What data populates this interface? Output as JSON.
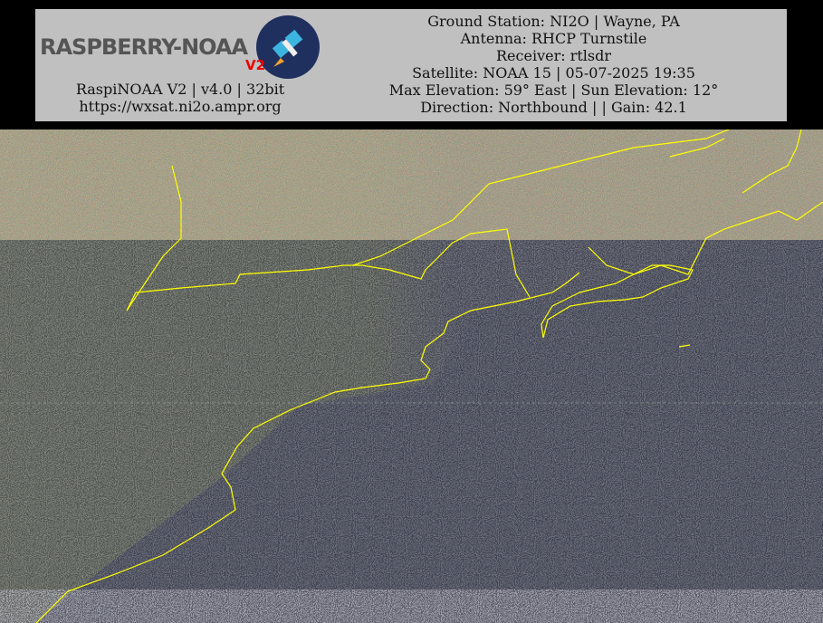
{
  "header": {
    "logo": {
      "text": "RASPBERRY-NOAA",
      "version": "V2"
    },
    "left_lines": [
      "RaspiNOAA V2 | v4.0 | 32bit",
      "https://wxsat.ni2o.ampr.org"
    ],
    "right_lines": [
      "Ground Station: NI2O | Wayne, PA",
      "Antenna: RHCP Turnstile",
      "Receiver: rtlsdr",
      "Satellite: NOAA 15 | 05-07-2025 19:35",
      "Max Elevation: 59° East | Sun Elevation: 12°",
      "Direction: Northbound | | Gain: 42.1"
    ]
  }
}
